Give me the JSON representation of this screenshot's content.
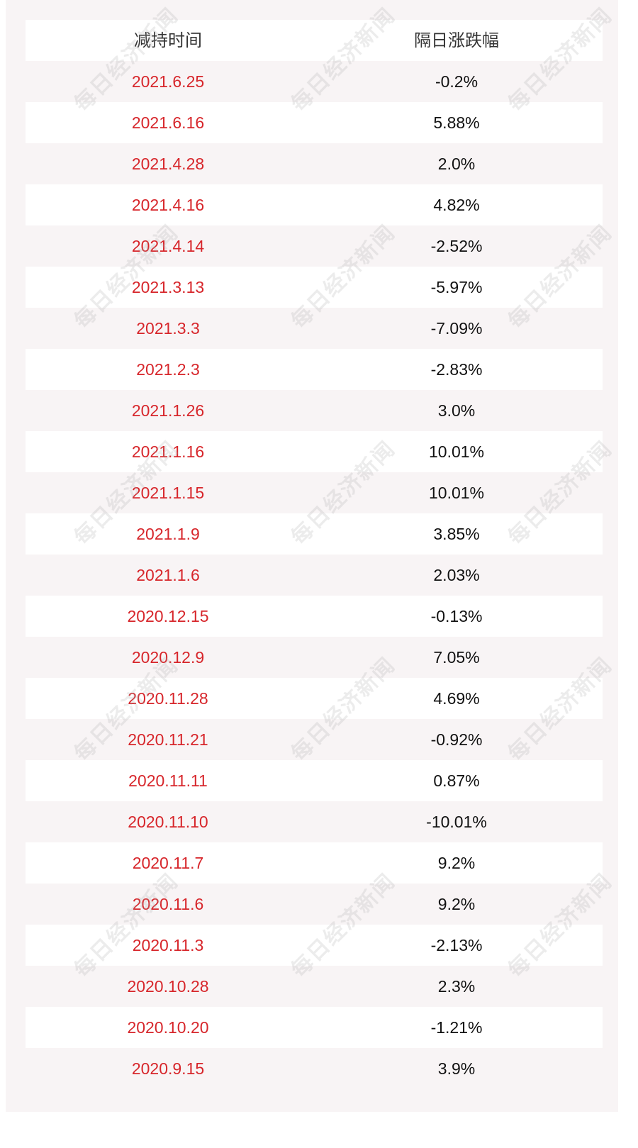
{
  "table": {
    "headers": [
      "减持时间",
      "隔日涨跌幅"
    ],
    "rows": [
      {
        "date": "2021.6.25",
        "change": "-0.2%"
      },
      {
        "date": "2021.6.16",
        "change": "5.88%"
      },
      {
        "date": "2021.4.28",
        "change": "2.0%"
      },
      {
        "date": "2021.4.16",
        "change": "4.82%"
      },
      {
        "date": "2021.4.14",
        "change": "-2.52%"
      },
      {
        "date": "2021.3.13",
        "change": "-5.97%"
      },
      {
        "date": "2021.3.3",
        "change": "-7.09%"
      },
      {
        "date": "2021.2.3",
        "change": "-2.83%"
      },
      {
        "date": "2021.1.26",
        "change": "3.0%"
      },
      {
        "date": "2021.1.16",
        "change": "10.01%"
      },
      {
        "date": "2021.1.15",
        "change": "10.01%"
      },
      {
        "date": "2021.1.9",
        "change": "3.85%"
      },
      {
        "date": "2021.1.6",
        "change": "2.03%"
      },
      {
        "date": "2020.12.15",
        "change": "-0.13%"
      },
      {
        "date": "2020.12.9",
        "change": "7.05%"
      },
      {
        "date": "2020.11.28",
        "change": "4.69%"
      },
      {
        "date": "2020.11.21",
        "change": "-0.92%"
      },
      {
        "date": "2020.11.11",
        "change": "0.87%"
      },
      {
        "date": "2020.11.10",
        "change": "-10.01%"
      },
      {
        "date": "2020.11.7",
        "change": "9.2%"
      },
      {
        "date": "2020.11.6",
        "change": "9.2%"
      },
      {
        "date": "2020.11.3",
        "change": "-2.13%"
      },
      {
        "date": "2020.10.28",
        "change": "2.3%"
      },
      {
        "date": "2020.10.20",
        "change": "-1.21%"
      },
      {
        "date": "2020.9.15",
        "change": "3.9%"
      }
    ]
  },
  "watermark": "每日经济新闻",
  "colors": {
    "date_text": "#d7262b",
    "value_text": "#111111",
    "band_light": "#ffffff",
    "band_pink": "#f8f4f5"
  }
}
